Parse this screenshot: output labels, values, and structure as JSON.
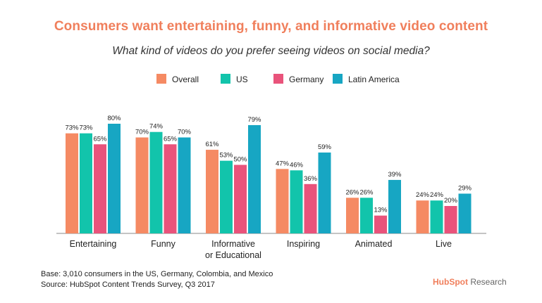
{
  "title": "Consumers want entertaining, funny, and informative video content",
  "subtitle": "What kind of videos do you prefer seeing videos on social media?",
  "footnote": {
    "line1": "Base: 3,010 consumers in the US, Germany, Colombia, and Mexico",
    "line2": "Source: HubSpot Content Trends Survey, Q3 2017"
  },
  "brand": {
    "name": "HubSpot",
    "suffix": "Research"
  },
  "chart_data": {
    "type": "bar",
    "title": "Consumers want entertaining, funny, and informative video content",
    "subtitle": "What kind of videos do you prefer seeing videos on social media?",
    "categories": [
      [
        "Entertaining"
      ],
      [
        "Funny"
      ],
      [
        "Informative",
        "or Educational"
      ],
      [
        "Inspiring"
      ],
      [
        "Animated"
      ],
      [
        "Live"
      ]
    ],
    "series": [
      {
        "name": "Overall",
        "color": "#f58a63",
        "values": [
          73,
          70,
          61,
          47,
          26,
          24
        ]
      },
      {
        "name": "US",
        "color": "#12c4ab",
        "values": [
          73,
          74,
          53,
          46,
          26,
          24
        ]
      },
      {
        "name": "Germany",
        "color": "#e9537b",
        "values": [
          65,
          65,
          50,
          36,
          13,
          20
        ]
      },
      {
        "name": "Latin America",
        "color": "#17a6c3",
        "values": [
          80,
          70,
          79,
          59,
          39,
          29
        ]
      }
    ],
    "value_suffix": "%",
    "ylim": [
      0,
      100
    ],
    "grid": false,
    "legend_position": "top-center"
  }
}
